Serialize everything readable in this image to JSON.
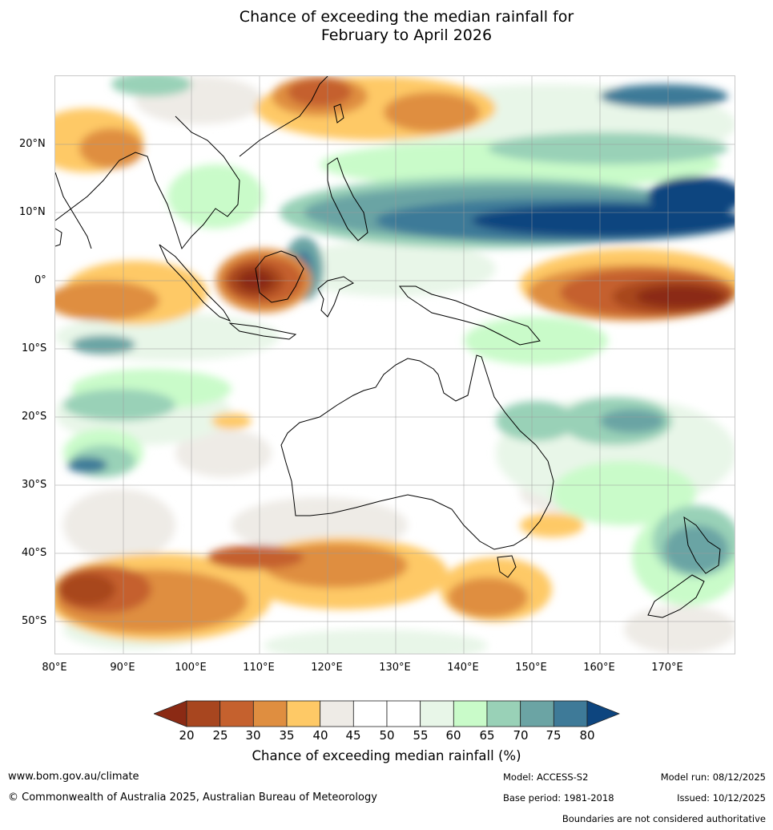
{
  "title": {
    "line1": "Chance of exceeding the median rainfall for",
    "line2": "February to April 2026"
  },
  "map": {
    "lat_labels": [
      "20°N",
      "10°N",
      "0°",
      "10°S",
      "20°S",
      "30°S",
      "40°S",
      "50°S"
    ],
    "lon_labels": [
      "80°E",
      "90°E",
      "100°E",
      "110°E",
      "120°E",
      "130°E",
      "140°E",
      "150°E",
      "160°E",
      "170°E"
    ],
    "region": "Indian Ocean, Maritime Continent, Australia, Western Pacific"
  },
  "colorbar": {
    "ticks": [
      "20",
      "25",
      "30",
      "35",
      "40",
      "45",
      "50",
      "55",
      "60",
      "65",
      "70",
      "75",
      "80"
    ],
    "colors": [
      "#8b2a14",
      "#a8461f",
      "#c5612e",
      "#df8e40",
      "#fec966",
      "#eeebe6",
      "#ffffff",
      "#ffffff",
      "#e8f6e8",
      "#c9fbc9",
      "#99d1b7",
      "#6ba4a4",
      "#3e7a98",
      "#0d457f"
    ],
    "label": "Chance of exceeding median rainfall (%)"
  },
  "footer": {
    "website": "www.bom.gov.au/climate",
    "copyright": "© Commonwealth of Australia 2025, Australian Bureau of Meteorology",
    "model": "Model: ACCESS-S2",
    "model_run": "Model run: 08/12/2025",
    "base_period": "Base period: 1981-2018",
    "issued": "Issued: 10/12/2025",
    "disclaimer": "Boundaries are not considered authoritative"
  }
}
